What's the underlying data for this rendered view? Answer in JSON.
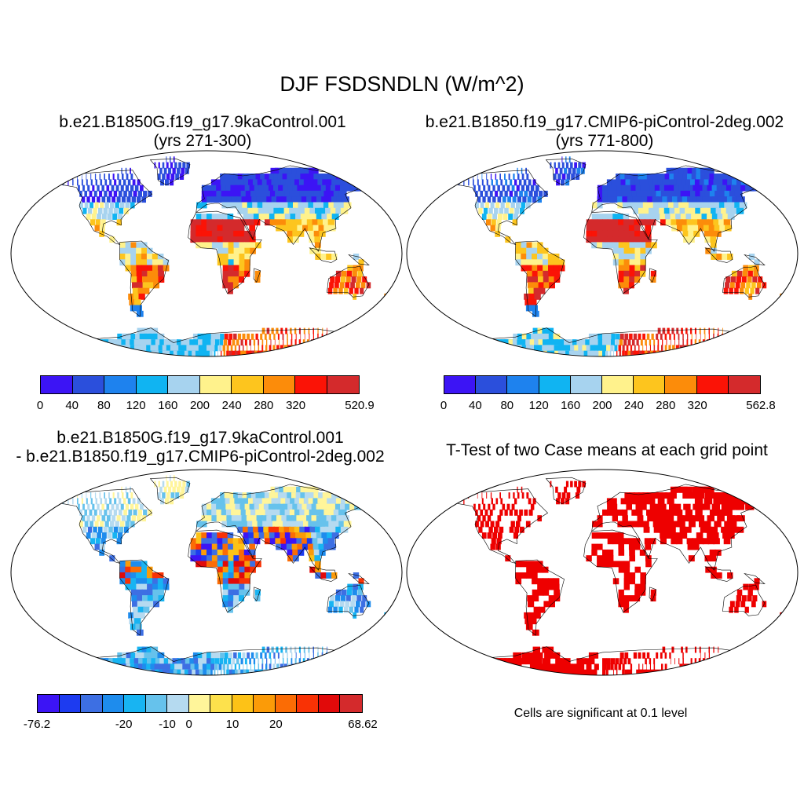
{
  "title": "DJF FSDSNDLN (W/m^2)",
  "panels": [
    {
      "title_line1": "b.e21.B1850G.f19_g17.9kaControl.001",
      "title_line2": "(yrs 271-300)"
    },
    {
      "title_line1": "b.e21.B1850.f19_g17.CMIP6-piControl-2deg.002",
      "title_line2": "(yrs 771-800)"
    },
    {
      "title_line1": "b.e21.B1850G.f19_g17.9kaControl.001",
      "title_line2": "- b.e21.B1850.f19_g17.CMIP6-piControl-2deg.002"
    },
    {
      "title_line1": "T-Test of two Case means at each grid point",
      "note": "Cells are significant at 0.1 level"
    }
  ],
  "colorbars": {
    "case1": {
      "colors": [
        "#3c14f5",
        "#2b4fdc",
        "#1e82ee",
        "#10b4f2",
        "#a7d3ef",
        "#fff28c",
        "#fdc51e",
        "#fc8c0a",
        "#fb1306",
        "#d42a2c"
      ],
      "labels": [
        "0",
        "40",
        "80",
        "120",
        "160",
        "200",
        "240",
        "280",
        "320",
        "520.9"
      ]
    },
    "case2": {
      "colors": [
        "#3c14f5",
        "#2b4fdc",
        "#1e82ee",
        "#10b4f2",
        "#a7d3ef",
        "#fff28c",
        "#fdc51e",
        "#fc8c0a",
        "#fb1306",
        "#d42a2c"
      ],
      "labels": [
        "0",
        "40",
        "80",
        "120",
        "160",
        "200",
        "240",
        "280",
        "320",
        "562.8"
      ]
    },
    "diff": {
      "colors": [
        "#3c14f5",
        "#1d3bf0",
        "#3d6fe3",
        "#1e8ced",
        "#18b4f2",
        "#66c2ec",
        "#b5daf0",
        "#fff59a",
        "#fde14c",
        "#fdc217",
        "#fb9b08",
        "#fb6c05",
        "#f93205",
        "#e10a0a",
        "#d42a2c"
      ],
      "labels": [
        "-76.2",
        "-20",
        "-10",
        "0",
        "10",
        "20",
        "68.62"
      ]
    }
  },
  "colors": {
    "significance": "#ee0000",
    "ocean": "#ffffff",
    "coast": "#000000"
  }
}
